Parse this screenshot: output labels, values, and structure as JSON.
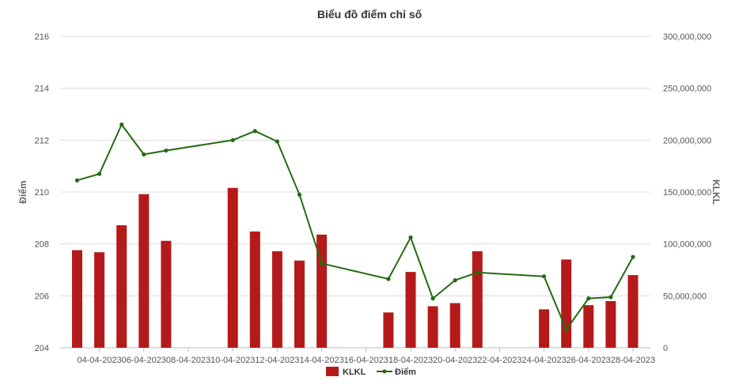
{
  "chart_data": {
    "type": "bar-line-combo",
    "title": "Biểu đồ điểm chỉ số",
    "y_left_label": "Điểm",
    "y_right_label": "KLKL",
    "y_left_range": [
      204,
      216
    ],
    "y_left_ticks": [
      "204",
      "206",
      "208",
      "210",
      "212",
      "214",
      "216"
    ],
    "y_right_range": [
      0,
      300000000
    ],
    "y_right_ticks": [
      "0",
      "50,000,000",
      "100,000,000",
      "150,000,000",
      "200,000,000",
      "250,000,000",
      "300,000,000"
    ],
    "x_tick_labels": [
      "04-04-2023",
      "06-04-2023",
      "08-04-2023",
      "10-04-2023",
      "12-04-2023",
      "14-04-2023",
      "16-04-2023",
      "18-04-2023",
      "20-04-2023",
      "22-04-2023",
      "24-04-2023",
      "26-04-2023",
      "28-04-2023"
    ],
    "x_range": [
      "2023-04-02",
      "2023-04-28"
    ],
    "grid": true,
    "legend_position": "bottom",
    "colors": {
      "bar": "#b51a1a",
      "line": "#246b12"
    },
    "series": [
      {
        "name": "KLKL",
        "kind": "bar",
        "axis": "right",
        "x": [
          "2023-04-03",
          "2023-04-04",
          "2023-04-05",
          "2023-04-06",
          "2023-04-07",
          "2023-04-10",
          "2023-04-11",
          "2023-04-12",
          "2023-04-13",
          "2023-04-14",
          "2023-04-17",
          "2023-04-18",
          "2023-04-19",
          "2023-04-20",
          "2023-04-21",
          "2023-04-24",
          "2023-04-25",
          "2023-04-26",
          "2023-04-27",
          "2023-04-28"
        ],
        "values": [
          94000000,
          92000000,
          118000000,
          148000000,
          103000000,
          154000000,
          112000000,
          93000000,
          84000000,
          109000000,
          34000000,
          73000000,
          40000000,
          43000000,
          93000000,
          37000000,
          85000000,
          41000000,
          45000000,
          70000000
        ]
      },
      {
        "name": "Điểm",
        "kind": "line",
        "axis": "left",
        "x": [
          "2023-04-03",
          "2023-04-04",
          "2023-04-05",
          "2023-04-06",
          "2023-04-07",
          "2023-04-10",
          "2023-04-11",
          "2023-04-12",
          "2023-04-13",
          "2023-04-14",
          "2023-04-17",
          "2023-04-18",
          "2023-04-19",
          "2023-04-20",
          "2023-04-21",
          "2023-04-24",
          "2023-04-25",
          "2023-04-26",
          "2023-04-27",
          "2023-04-28"
        ],
        "values": [
          210.45,
          210.7,
          212.6,
          211.45,
          211.6,
          212.0,
          212.35,
          211.95,
          209.9,
          207.25,
          206.65,
          208.25,
          205.9,
          206.6,
          206.9,
          206.75,
          204.7,
          205.9,
          205.95,
          207.5
        ]
      }
    ]
  }
}
